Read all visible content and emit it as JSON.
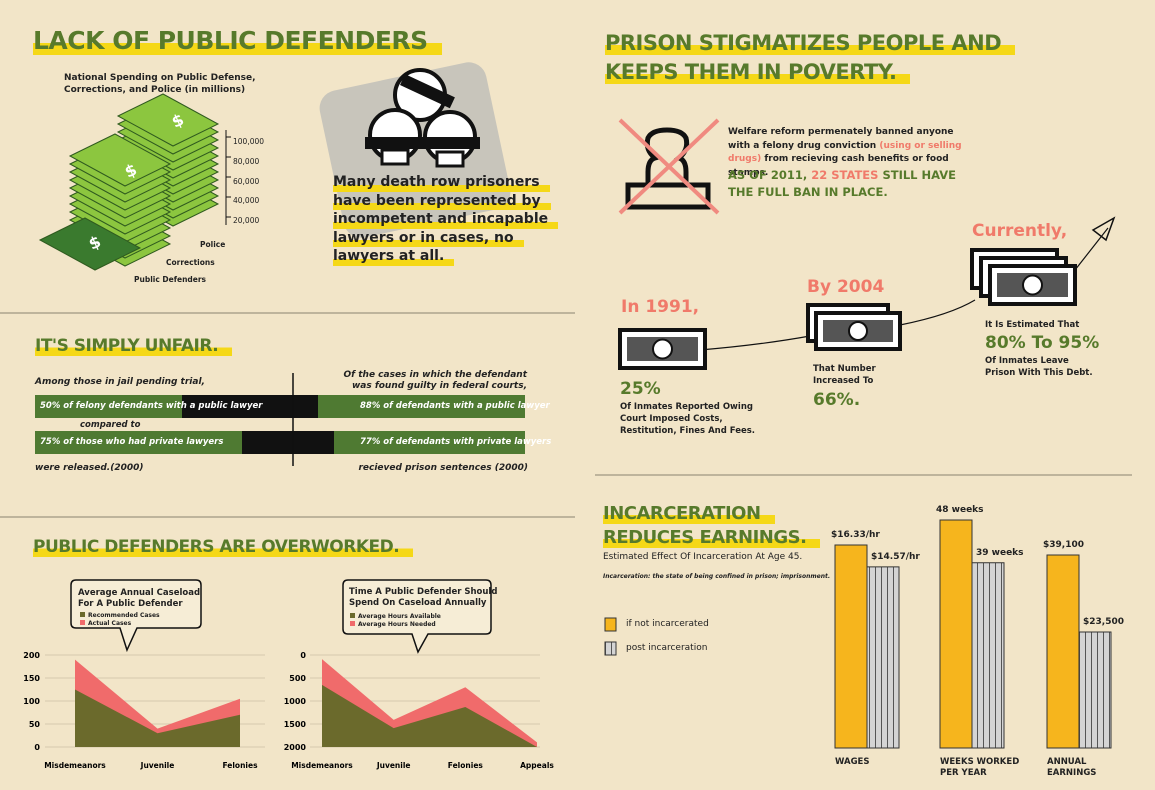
{
  "left_top": {
    "title": "LACK OF PUBLIC DEFENDERS",
    "subtitle": "National Spending on Public Defense, Corrections, and Police (in millions)",
    "scale": [
      "100,000",
      "80,000",
      "60,000",
      "40,000",
      "20,000"
    ],
    "stack_labels": [
      "Police",
      "Corrections",
      "Public Defenders"
    ],
    "callout": [
      "Many death row prisoners",
      "have been represented by",
      "incompetent and incapable",
      "lawyers or in cases, no",
      "lawyers at all."
    ]
  },
  "unfair": {
    "title": "IT'S SIMPLY UNFAIR.",
    "left_intro": "Among those in jail pending trial,",
    "right_intro": [
      "Of the cases in which the defendant",
      "was found guilty in federal courts,"
    ],
    "rows": [
      {
        "left": "50% of felony defendants with a public lawyer",
        "right": "88% of defendants with a public lawyer"
      },
      {
        "left": "75% of those who had private lawyers",
        "right": "77% of defendants with private lawyers"
      }
    ],
    "compared": "compared to",
    "left_outro": "were released.(2000)",
    "right_outro": "recieved prison sentences (2000)"
  },
  "overworked": {
    "title": "PUBLIC DEFENDERS ARE OVERWORKED."
  },
  "poverty": {
    "title": [
      "PRISON STIGMATIZES PEOPLE AND",
      "KEEPS THEM IN POVERTY."
    ],
    "welfare": {
      "before": "Welfare reform permenately banned anyone with a felony drug conviction ",
      "highlight": "(using or selling drugs)",
      "after": " from recieving cash benefits or food stamps."
    },
    "ban": {
      "before": "AS OF 2011, ",
      "highlight": "22 STATES",
      "after": " STILL HAVE THE FULL BAN IN PLACE."
    },
    "steps": [
      {
        "heading": "In 1991,",
        "figure": "25%",
        "text": "Of Inmates Reported Owing Court Imposed Costs, Restitution, Fines And Fees."
      },
      {
        "heading": "By 2004",
        "pre": "That Number Increased To",
        "figure": "66%."
      },
      {
        "heading": "Currently,",
        "pre": "It Is Estimated That",
        "figure": "80% To 95%",
        "text": "Of Inmates Leave Prison With This Debt."
      }
    ]
  },
  "earnings": {
    "title": [
      "INCARCERATION",
      "REDUCES EARNINGS."
    ],
    "subtitle": "Estimated Effect Of Incarceration At Age 45.",
    "definition": "Incarceration: the state of being confined in prison; imprisonment."
  },
  "chart_data": [
    {
      "type": "area",
      "title": [
        "Average Annual Caseload",
        "For A Public Defender"
      ],
      "categories": [
        "Misdemeanors",
        "Juvenile",
        "Felonies"
      ],
      "series": [
        {
          "name": "Actual Cases",
          "color": "#f06b6b",
          "values": [
            190,
            40,
            105
          ]
        },
        {
          "name": "Recommended Cases",
          "color": "#6b6a2c",
          "values": [
            125,
            30,
            70
          ]
        }
      ],
      "ylim": [
        0,
        200
      ],
      "yticks": [
        0,
        50,
        100,
        150,
        200
      ],
      "grid": true
    },
    {
      "type": "area",
      "title": [
        "Time A Public Defender Should",
        "Spend On Caseload Annually"
      ],
      "categories": [
        "Misdemeanors",
        "Juvenile",
        "Felonies",
        "Appeals"
      ],
      "series": [
        {
          "name": "Average Hours Needed",
          "color": "#f06b6b",
          "values": [
            90,
            1410,
            700,
            1900
          ]
        },
        {
          "name": "Average Hours Available",
          "color": "#6b6a2c",
          "values": [
            650,
            1590,
            1130,
            2000
          ]
        }
      ],
      "ylim": [
        0,
        2000
      ],
      "y_inverted": true,
      "yticks": [
        0,
        500,
        1000,
        1500,
        2000
      ],
      "grid": true
    },
    {
      "type": "bar",
      "categories": [
        "WAGES",
        "WEEKS WORKED PER YEAR",
        "ANNUAL EARNINGS"
      ],
      "series": [
        {
          "name": "if not incarcerated",
          "color": "#f6b51d",
          "values": [
            16.33,
            48,
            39100
          ],
          "value_labels": [
            "$16.33/hr",
            "48 weeks",
            "$39,100"
          ]
        },
        {
          "name": "post incarceration",
          "color": "#d4d4d4",
          "values": [
            14.57,
            39,
            23500
          ],
          "value_labels": [
            "$14.57/hr",
            "39 weeks",
            "$23,500"
          ]
        }
      ]
    }
  ]
}
